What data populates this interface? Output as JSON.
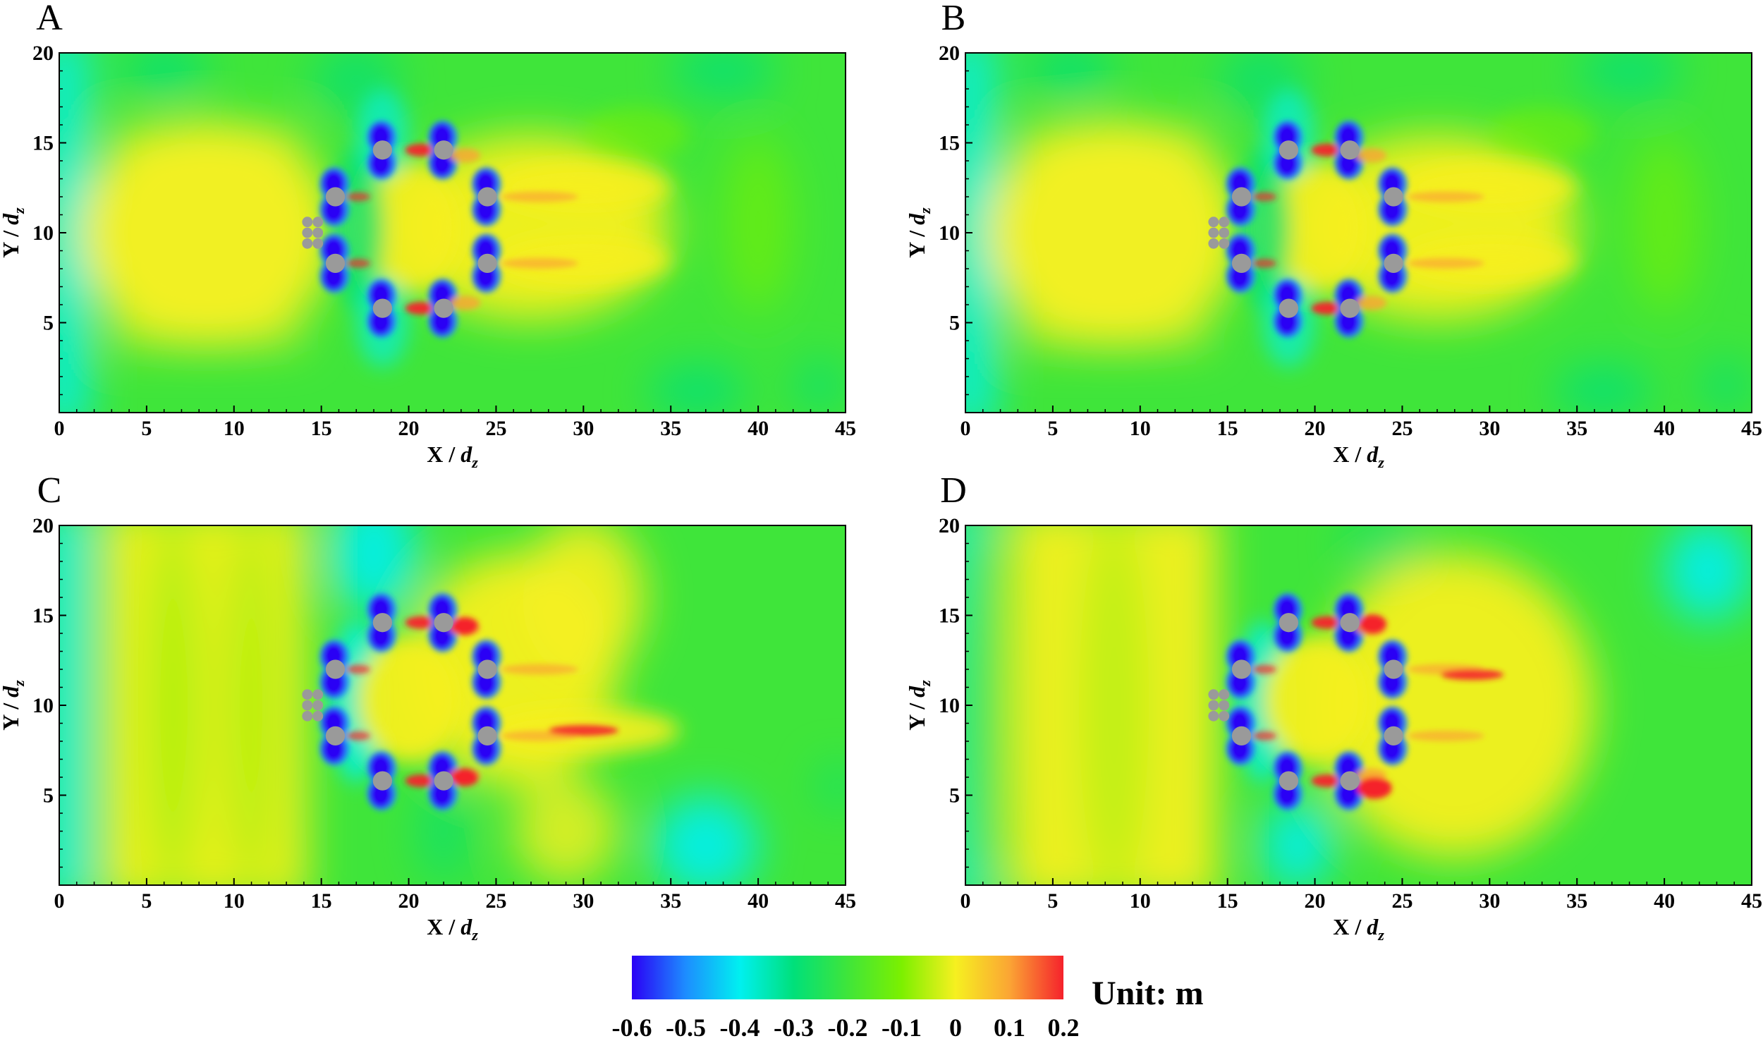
{
  "chart_data": {
    "type": "heatmap",
    "panels": [
      {
        "letter": "A",
        "variant": "a"
      },
      {
        "letter": "B",
        "variant": "a"
      },
      {
        "letter": "C",
        "variant": "c"
      },
      {
        "letter": "D",
        "variant": "d"
      }
    ],
    "x_axis": {
      "label": "X / ",
      "label_sub": "d",
      "label_subscript": "z",
      "range": [
        0,
        45
      ],
      "ticks": [
        "0",
        "5",
        "10",
        "15",
        "20",
        "25",
        "30",
        "35",
        "40",
        "45"
      ]
    },
    "y_axis": {
      "label": "Y / ",
      "label_sub": "d",
      "label_subscript": "z",
      "range": [
        0,
        20
      ],
      "ticks": [
        "5",
        "10",
        "15",
        "20"
      ]
    },
    "colorbar": {
      "range": [
        -0.6,
        0.2
      ],
      "ticks": [
        "-0.6",
        "-0.5",
        "-0.4",
        "-0.3",
        "-0.2",
        "-0.1",
        "0",
        "0.1",
        "0.2"
      ],
      "unit_label": "Unit: m",
      "colors": [
        "#2a00f5",
        "#1d8dff",
        "#00f0f0",
        "#00e07a",
        "#3fe53a",
        "#7cf000",
        "#f6f020",
        "#fba534",
        "#f5222c"
      ]
    },
    "piers": [
      {
        "x": 18.5,
        "y": 14.6,
        "r": 0.55
      },
      {
        "x": 22.0,
        "y": 14.6,
        "r": 0.55
      },
      {
        "x": 15.8,
        "y": 12.0,
        "r": 0.55
      },
      {
        "x": 24.5,
        "y": 12.0,
        "r": 0.55
      },
      {
        "x": 15.8,
        "y": 8.3,
        "r": 0.55
      },
      {
        "x": 24.5,
        "y": 8.3,
        "r": 0.55
      },
      {
        "x": 18.5,
        "y": 5.8,
        "r": 0.55
      },
      {
        "x": 22.0,
        "y": 5.8,
        "r": 0.55
      }
    ],
    "small_piers": [
      {
        "x": 14.2,
        "y": 10.6
      },
      {
        "x": 14.8,
        "y": 10.6
      },
      {
        "x": 14.2,
        "y": 10.0
      },
      {
        "x": 14.8,
        "y": 10.0
      },
      {
        "x": 14.2,
        "y": 9.4
      },
      {
        "x": 14.8,
        "y": 9.4
      }
    ]
  }
}
